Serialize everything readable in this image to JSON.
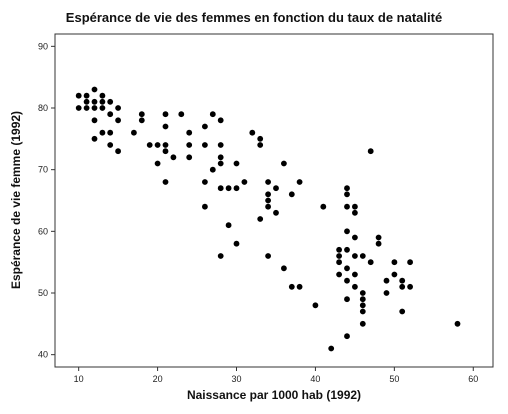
{
  "chart_data": {
    "type": "scatter",
    "title": "Espérance de vie des femmes en fonction du taux de natalité",
    "xlabel": "Naissance par 1000 hab (1992)",
    "ylabel": "Espérance de vie femme (1992)",
    "xlim": [
      7,
      62.5
    ],
    "ylim": [
      38,
      92
    ],
    "xticks": [
      10,
      20,
      30,
      40,
      50,
      60
    ],
    "yticks": [
      40,
      50,
      60,
      70,
      80,
      90
    ],
    "grid": false,
    "legend": "none",
    "marker_color": "#000000",
    "points": [
      [
        10,
        82
      ],
      [
        10,
        80
      ],
      [
        11,
        82
      ],
      [
        11,
        81
      ],
      [
        11,
        80
      ],
      [
        12,
        83
      ],
      [
        12,
        81
      ],
      [
        12,
        80
      ],
      [
        12,
        78
      ],
      [
        12,
        75
      ],
      [
        13,
        82
      ],
      [
        13,
        81
      ],
      [
        13,
        80
      ],
      [
        13,
        76
      ],
      [
        14,
        81
      ],
      [
        14,
        79
      ],
      [
        14,
        76
      ],
      [
        14,
        74
      ],
      [
        15,
        80
      ],
      [
        15,
        78
      ],
      [
        15,
        73
      ],
      [
        17,
        76
      ],
      [
        18,
        79
      ],
      [
        18,
        78
      ],
      [
        19,
        74
      ],
      [
        20,
        74
      ],
      [
        20,
        71
      ],
      [
        21,
        79
      ],
      [
        21,
        77
      ],
      [
        21,
        74
      ],
      [
        21,
        73
      ],
      [
        21,
        68
      ],
      [
        22,
        72
      ],
      [
        23,
        79
      ],
      [
        24,
        76
      ],
      [
        24,
        74
      ],
      [
        24,
        72
      ],
      [
        26,
        77
      ],
      [
        26,
        74
      ],
      [
        26,
        68
      ],
      [
        26,
        64
      ],
      [
        27,
        79
      ],
      [
        27,
        70
      ],
      [
        28,
        78
      ],
      [
        28,
        74
      ],
      [
        28,
        72
      ],
      [
        28,
        71
      ],
      [
        28,
        67
      ],
      [
        28,
        56
      ],
      [
        29,
        67
      ],
      [
        29,
        61
      ],
      [
        30,
        71
      ],
      [
        30,
        67
      ],
      [
        30,
        58
      ],
      [
        31,
        68
      ],
      [
        32,
        76
      ],
      [
        33,
        75
      ],
      [
        33,
        74
      ],
      [
        33,
        62
      ],
      [
        34,
        68
      ],
      [
        34,
        66
      ],
      [
        34,
        65
      ],
      [
        34,
        64
      ],
      [
        34,
        56
      ],
      [
        35,
        67
      ],
      [
        35,
        63
      ],
      [
        36,
        71
      ],
      [
        36,
        54
      ],
      [
        37,
        66
      ],
      [
        37,
        51
      ],
      [
        38,
        68
      ],
      [
        38,
        51
      ],
      [
        40,
        48
      ],
      [
        41,
        64
      ],
      [
        42,
        41
      ],
      [
        43,
        57
      ],
      [
        43,
        56
      ],
      [
        43,
        55
      ],
      [
        43,
        53
      ],
      [
        44,
        67
      ],
      [
        44,
        66
      ],
      [
        44,
        64
      ],
      [
        44,
        60
      ],
      [
        44,
        57
      ],
      [
        44,
        54
      ],
      [
        44,
        52
      ],
      [
        44,
        49
      ],
      [
        44,
        43
      ],
      [
        45,
        64
      ],
      [
        45,
        63
      ],
      [
        45,
        59
      ],
      [
        45,
        56
      ],
      [
        45,
        53
      ],
      [
        45,
        51
      ],
      [
        46,
        56
      ],
      [
        46,
        50
      ],
      [
        46,
        49
      ],
      [
        46,
        48
      ],
      [
        46,
        47
      ],
      [
        46,
        45
      ],
      [
        47,
        73
      ],
      [
        47,
        55
      ],
      [
        48,
        59
      ],
      [
        48,
        58
      ],
      [
        49,
        52
      ],
      [
        49,
        50
      ],
      [
        50,
        55
      ],
      [
        50,
        53
      ],
      [
        51,
        52
      ],
      [
        51,
        51
      ],
      [
        51,
        47
      ],
      [
        52,
        55
      ],
      [
        52,
        51
      ],
      [
        58,
        45
      ]
    ]
  }
}
